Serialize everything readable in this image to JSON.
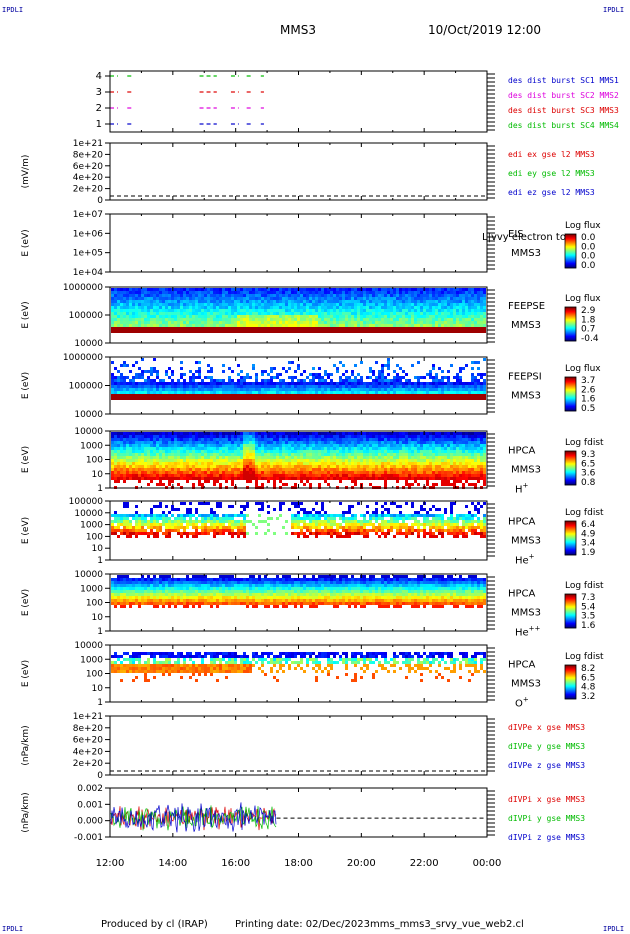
{
  "corner_label": "IPDLI",
  "header": {
    "spacecraft": "MMS3",
    "datetime": "10/Oct/2019 12:00"
  },
  "footer": {
    "produced_by": "Produced by cl (IRAP)",
    "printing_date": "Printing date: 02/Dec/2023",
    "script_name": "mms_mms3_srvy_vue_web2.cl"
  },
  "colors": {
    "red": "#dd0000",
    "green": "#00bb00",
    "blue": "#0000cc",
    "magenta": "#dd00dd"
  },
  "chart_data": [
    {
      "type": "line",
      "name": "burst-availability",
      "yticks": [
        "4",
        "3",
        "2",
        "1"
      ],
      "legend": [
        {
          "label": "des dist burst SC1 MMS1",
          "color": "#0000cc"
        },
        {
          "label": "des dist burst SC2 MMS2",
          "color": "#dd00dd"
        },
        {
          "label": "des dist burst SC3 MMS3",
          "color": "#dd0000"
        },
        {
          "label": "des dist burst SC4 MMS4",
          "color": "#00bb00"
        }
      ],
      "series": [
        {
          "level": 4,
          "color": "#00bb00",
          "segments": [
            [
              12.0,
              12.25
            ],
            [
              12.55,
              12.75
            ],
            [
              14.85,
              15.4
            ],
            [
              15.85,
              16.1
            ],
            [
              16.35,
              16.5
            ],
            [
              16.8,
              16.9
            ]
          ]
        },
        {
          "level": 3,
          "color": "#dd0000",
          "segments": [
            [
              12.0,
              12.25
            ],
            [
              12.55,
              12.75
            ],
            [
              14.85,
              15.4
            ],
            [
              15.85,
              16.1
            ],
            [
              16.35,
              16.5
            ],
            [
              16.8,
              16.9
            ]
          ]
        },
        {
          "level": 2,
          "color": "#dd00dd",
          "segments": [
            [
              12.0,
              12.25
            ],
            [
              12.55,
              12.75
            ],
            [
              14.85,
              15.4
            ],
            [
              15.85,
              16.1
            ],
            [
              16.35,
              16.5
            ],
            [
              16.8,
              16.9
            ]
          ]
        },
        {
          "level": 1,
          "color": "#0000cc",
          "segments": [
            [
              12.0,
              12.25
            ],
            [
              12.55,
              12.75
            ],
            [
              14.85,
              15.4
            ],
            [
              15.85,
              16.1
            ],
            [
              16.35,
              16.5
            ],
            [
              16.8,
              16.9
            ]
          ]
        }
      ]
    },
    {
      "type": "line",
      "name": "edi-electric-field",
      "ylabel": "(mV/m)",
      "yticks": [
        "1e+21",
        "8e+20",
        "6e+20",
        "4e+20",
        "2e+20",
        "0"
      ],
      "legend": [
        {
          "label": "edi ex gse l2 MMS3",
          "color": "#dd0000"
        },
        {
          "label": "edi ey gse l2 MMS3",
          "color": "#00bb00"
        },
        {
          "label": "edi ez gse l2 MMS3",
          "color": "#0000cc"
        }
      ],
      "zero_line": true
    },
    {
      "type": "heatmap",
      "name": "eis-electron",
      "ylabel": "E (eV)",
      "yticks": [
        "1e+07",
        "1e+06",
        "1e+05",
        "1e+04"
      ],
      "instrument": [
        "EIS",
        "MMS3"
      ],
      "overlay_text": "L|vvy electron to",
      "colorbar_title": "Log flux",
      "colorbar_ticks": [
        "0.0",
        "0.0",
        "0.0",
        "0.0"
      ],
      "empty": true
    },
    {
      "type": "heatmap",
      "name": "feeps-electron",
      "ylabel": "E (eV)",
      "yticks": [
        "1000000",
        "100000",
        "10000"
      ],
      "instrument": [
        "FEEPSE",
        "MMS3"
      ],
      "colorbar_title": "Log flux",
      "colorbar_ticks": [
        "2.9",
        "1.8",
        "0.7",
        "-0.4"
      ],
      "pattern": "feepse"
    },
    {
      "type": "heatmap",
      "name": "feeps-ion",
      "ylabel": "E (eV)",
      "yticks": [
        "1000000",
        "100000",
        "10000"
      ],
      "instrument": [
        "FEEPSI",
        "MMS3"
      ],
      "colorbar_title": "Log flux",
      "colorbar_ticks": [
        "3.7",
        "2.6",
        "1.6",
        "0.5"
      ],
      "pattern": "feepsi"
    },
    {
      "type": "heatmap",
      "name": "hpca-hplus",
      "ylabel": "E (eV)",
      "yticks": [
        "10000",
        "1000",
        "100",
        "10",
        "1"
      ],
      "instrument": [
        "HPCA",
        "MMS3"
      ],
      "species": "H",
      "species_charge": "+",
      "colorbar_title": "Log fdist",
      "colorbar_ticks": [
        "9.3",
        "6.5",
        "3.6",
        "0.8"
      ],
      "pattern": "hplus"
    },
    {
      "type": "heatmap",
      "name": "hpca-heplus",
      "ylabel": "E (eV)",
      "yticks": [
        "100000",
        "10000",
        "1000",
        "100",
        "10",
        "1"
      ],
      "instrument": [
        "HPCA",
        "MMS3"
      ],
      "species": "He",
      "species_charge": "+",
      "colorbar_title": "Log fdist",
      "colorbar_ticks": [
        "6.4",
        "4.9",
        "3.4",
        "1.9"
      ],
      "pattern": "heplus"
    },
    {
      "type": "heatmap",
      "name": "hpca-heplusplus",
      "ylabel": "E (eV)",
      "yticks": [
        "10000",
        "1000",
        "100",
        "10",
        "1"
      ],
      "instrument": [
        "HPCA",
        "MMS3"
      ],
      "species": "He",
      "species_charge": "++",
      "colorbar_title": "Log fdist",
      "colorbar_ticks": [
        "7.3",
        "5.4",
        "3.5",
        "1.6"
      ],
      "pattern": "heplusplus"
    },
    {
      "type": "heatmap",
      "name": "hpca-oplus",
      "ylabel": "E (eV)",
      "yticks": [
        "10000",
        "1000",
        "100",
        "10",
        "1"
      ],
      "instrument": [
        "HPCA",
        "MMS3"
      ],
      "species": "O",
      "species_charge": "+",
      "colorbar_title": "Log fdist",
      "colorbar_ticks": [
        "8.2",
        "6.5",
        "4.8",
        "3.2"
      ],
      "pattern": "oplus"
    },
    {
      "type": "line",
      "name": "electron-pressure-divergence",
      "ylabel": "(nPa/km)",
      "yticks": [
        "1e+21",
        "8e+20",
        "6e+20",
        "4e+20",
        "2e+20",
        "0"
      ],
      "legend": [
        {
          "label": "dIVPe x gse MMS3",
          "color": "#dd0000"
        },
        {
          "label": "dIVPe y gse MMS3",
          "color": "#00bb00"
        },
        {
          "label": "dIVPe z gse MMS3",
          "color": "#0000cc"
        }
      ],
      "zero_line": true
    },
    {
      "type": "line",
      "name": "ion-pressure-divergence",
      "ylabel": "(nPa/km)",
      "yticks": [
        "0.002",
        "0.001",
        "0.000",
        "-0.001"
      ],
      "ylim": [
        -0.0015,
        0.0024
      ],
      "legend": [
        {
          "label": "dIVPi x gse MMS3",
          "color": "#dd0000"
        },
        {
          "label": "dIVPi y gse MMS3",
          "color": "#00bb00"
        },
        {
          "label": "dIVPi z gse MMS3",
          "color": "#0000cc"
        }
      ],
      "data_span": [
        12.0,
        17.3
      ],
      "amplitude": 0.0008,
      "zero_line": true
    }
  ],
  "xaxis": {
    "ticks": [
      "12:00",
      "14:00",
      "16:00",
      "18:00",
      "20:00",
      "22:00",
      "00:00"
    ],
    "range": [
      12,
      24
    ]
  }
}
